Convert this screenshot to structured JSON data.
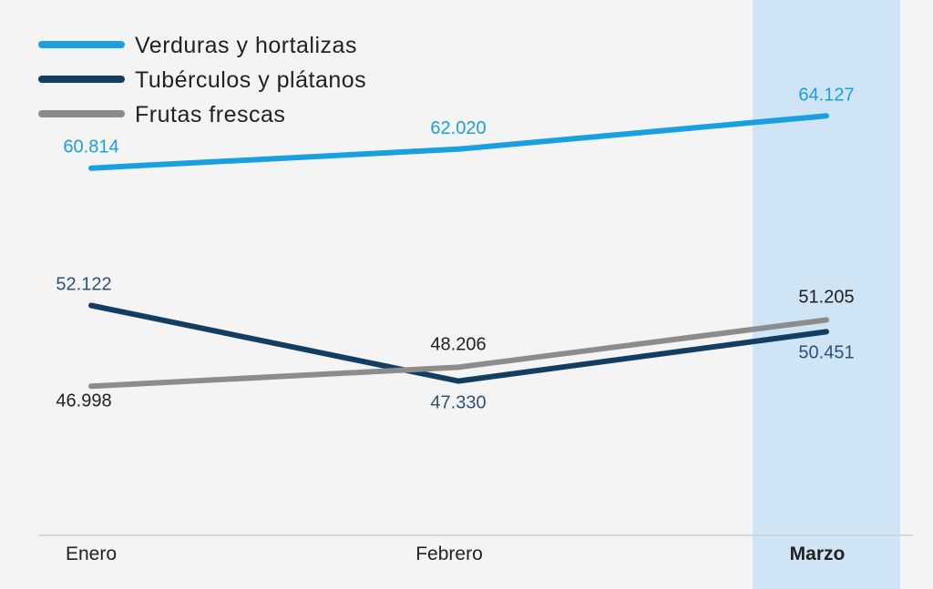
{
  "chart_data": {
    "type": "line",
    "title": "",
    "xlabel": "",
    "ylabel": "",
    "categories": [
      "Enero",
      "Febrero",
      "Marzo"
    ],
    "highlight_category": "Marzo",
    "highlight_color": "#cfe5f5",
    "ylim": [
      35000,
      70000
    ],
    "grid": false,
    "legend_position": "top-left",
    "series": [
      {
        "name": "Verduras y hortalizas",
        "color": "#1aa0e0",
        "values": [
          60814,
          62020,
          64127
        ],
        "labels": [
          "60.814",
          "62.020",
          "64.127"
        ],
        "label_color": "#1aa0e0"
      },
      {
        "name": "Tubérculos y plátanos",
        "color": "#123e62",
        "values": [
          52122,
          47330,
          50451
        ],
        "labels": [
          "52.122",
          "47.330",
          "50.451"
        ],
        "label_color": "#2e5276"
      },
      {
        "name": "Frutas frescas",
        "color": "#8c8c8c",
        "values": [
          46998,
          48206,
          51205
        ],
        "labels": [
          "46.998",
          "48.206",
          "51.205"
        ],
        "label_color": "#222222"
      }
    ]
  }
}
